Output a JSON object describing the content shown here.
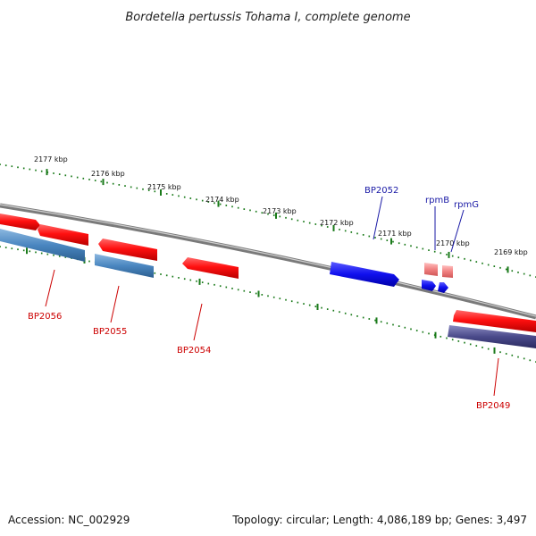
{
  "title": "Bordetella pertussis Tohama I, complete genome",
  "accession": "Accession: NC_002929",
  "summary": "Topology: circular; Length: 4,086,189 bp; Genes: 3,497",
  "ticks": [
    "2177 kbp",
    "2176 kbp",
    "2175 kbp",
    "2174 kbp",
    "2173 kbp",
    "2172 kbp",
    "2171 kbp",
    "2170 kbp",
    "2169 kbp"
  ],
  "genes": [
    {
      "name": "BP2056",
      "color": "#cc0000"
    },
    {
      "name": "BP2055",
      "color": "#cc0000"
    },
    {
      "name": "BP2054",
      "color": "#cc0000"
    },
    {
      "name": "BP2052",
      "color": "#1a1aa6"
    },
    {
      "name": "rpmB",
      "color": "#1a1aa6"
    },
    {
      "name": "rpmG",
      "color": "#1a1aa6"
    },
    {
      "name": "BP2049",
      "color": "#cc0000"
    }
  ],
  "colors": {
    "backbone": "#808080",
    "tick": "#1a7a1a",
    "cds_red": "#ff1a1a",
    "cds_steelblue": "#4a86c0",
    "cds_blue": "#1010ee",
    "rna_pink": "#f08a8a",
    "cds_purple": "#4a4a8a"
  }
}
